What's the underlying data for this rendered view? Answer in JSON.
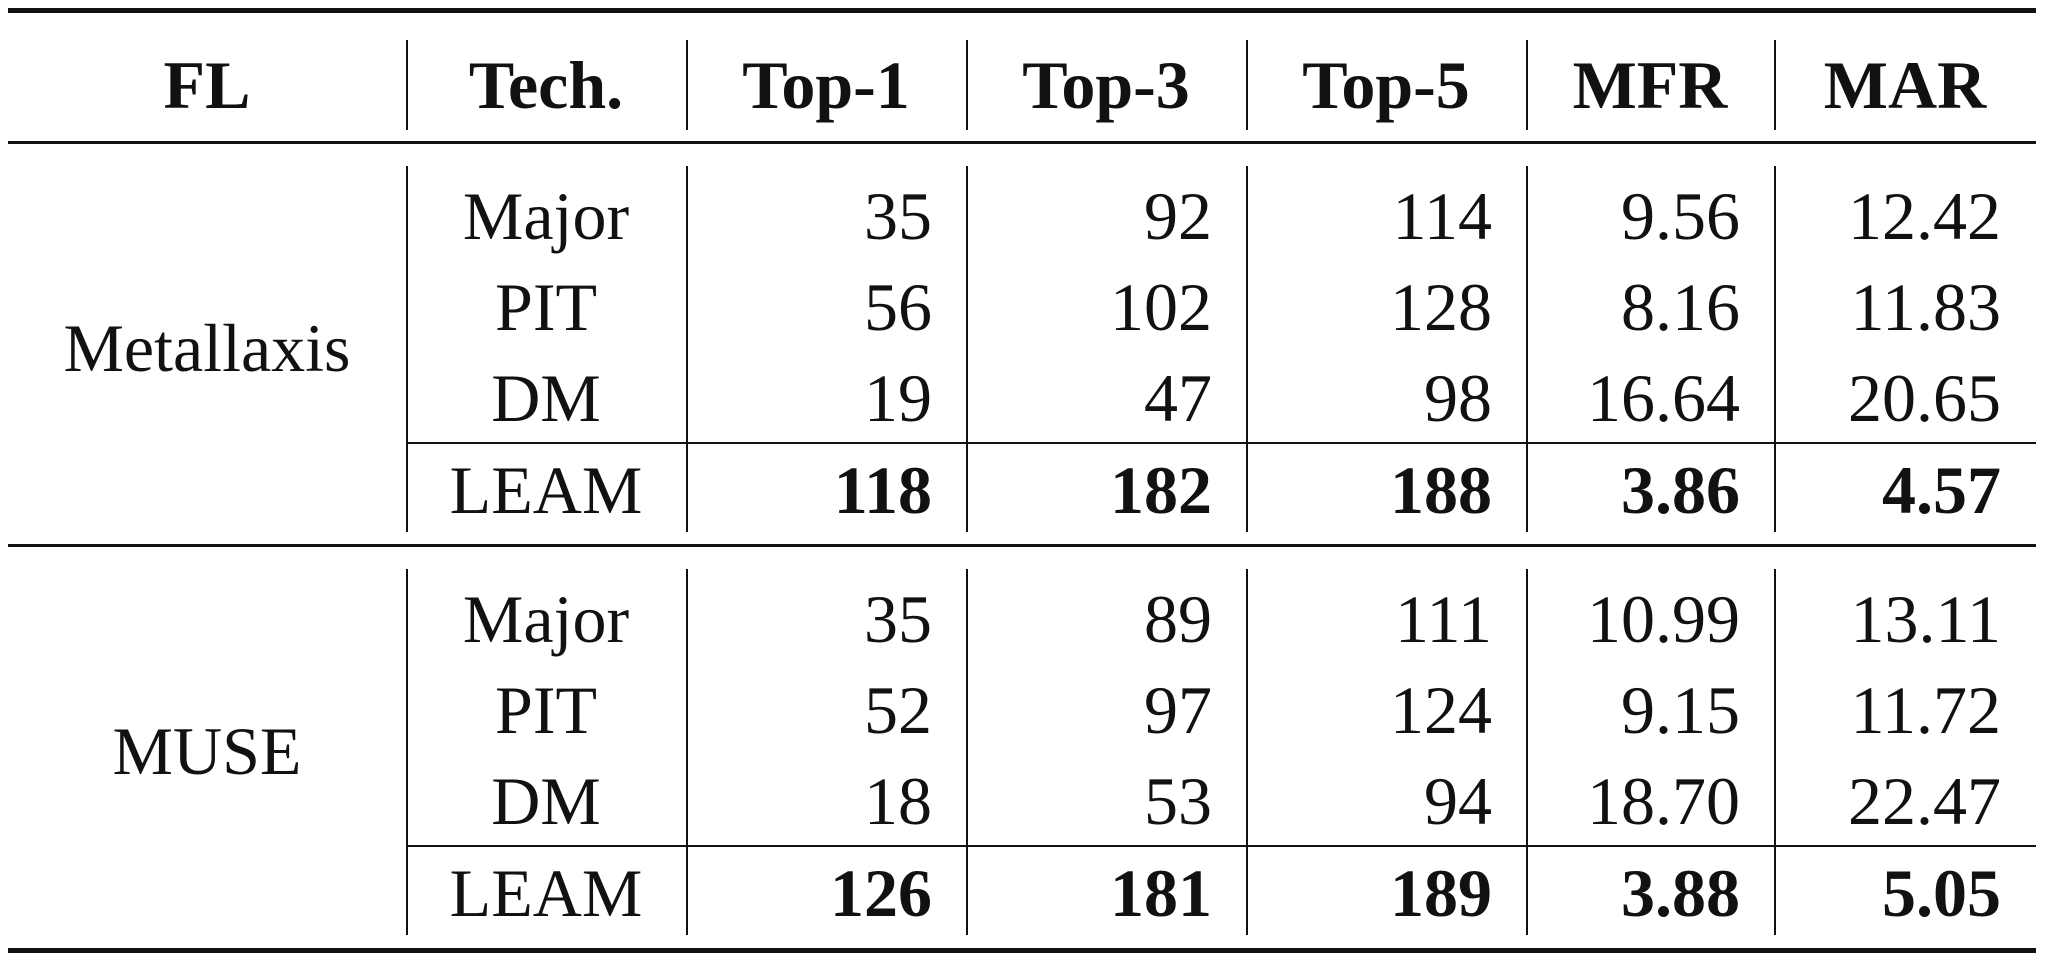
{
  "header": [
    "FL",
    "Tech.",
    "Top-1",
    "Top-3",
    "Top-5",
    "MFR",
    "MAR"
  ],
  "groups": [
    {
      "fl": "Metallaxis",
      "rows": [
        {
          "tech": "Major",
          "top1": "35",
          "top3": "92",
          "top5": "114",
          "mfr": "9.56",
          "mar": "12.42"
        },
        {
          "tech": "PIT",
          "top1": "56",
          "top3": "102",
          "top5": "128",
          "mfr": "8.16",
          "mar": "11.83"
        },
        {
          "tech": "DM",
          "top1": "19",
          "top3": "47",
          "top5": "98",
          "mfr": "16.64",
          "mar": "20.65"
        },
        {
          "tech": "LEAM",
          "top1": "118",
          "top3": "182",
          "top5": "188",
          "mfr": "3.86",
          "mar": "4.57"
        }
      ]
    },
    {
      "fl": "MUSE",
      "rows": [
        {
          "tech": "Major",
          "top1": "35",
          "top3": "89",
          "top5": "111",
          "mfr": "10.99",
          "mar": "13.11"
        },
        {
          "tech": "PIT",
          "top1": "52",
          "top3": "97",
          "top5": "124",
          "mfr": "9.15",
          "mar": "11.72"
        },
        {
          "tech": "DM",
          "top1": "18",
          "top3": "53",
          "top5": "94",
          "mfr": "18.70",
          "mar": "22.47"
        },
        {
          "tech": "LEAM",
          "top1": "126",
          "top3": "181",
          "top5": "189",
          "mfr": "3.88",
          "mar": "5.05"
        }
      ]
    }
  ]
}
